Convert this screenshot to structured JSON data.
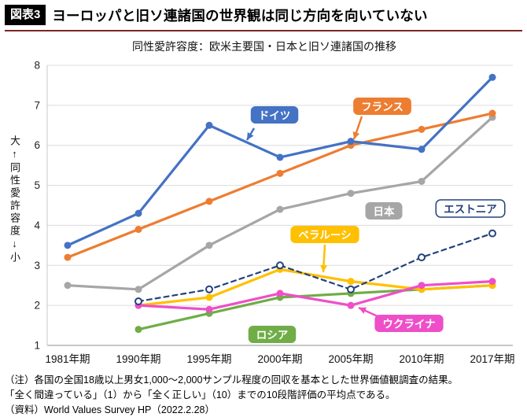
{
  "header": {
    "badge": "図表3",
    "title": "ヨーロッパと旧ソ連諸国の世界観は同じ方向を向いていない"
  },
  "chart_data": {
    "type": "line",
    "title": "同性愛許容度：欧米主要国・日本と旧ソ連諸国の推移",
    "y_axis_label": "大↑同性愛許容度↓小",
    "categories": [
      "1981年期",
      "1990年期",
      "1995年期",
      "2000年期",
      "2005年期",
      "2010年期",
      "2017年期"
    ],
    "ylim": [
      1,
      8
    ],
    "yticks": [
      1,
      2,
      3,
      4,
      5,
      6,
      7,
      8
    ],
    "grid": true,
    "legend_position": "on-chart-labels",
    "series": [
      {
        "name": "ドイツ",
        "color": "#4472c4",
        "style": "solid",
        "marker": "filled",
        "values": [
          3.5,
          4.3,
          6.5,
          5.7,
          6.1,
          5.9,
          7.7
        ]
      },
      {
        "name": "フランス",
        "color": "#ed7d31",
        "style": "solid",
        "marker": "filled",
        "values": [
          3.2,
          3.9,
          4.6,
          5.3,
          6.0,
          6.4,
          6.8
        ]
      },
      {
        "name": "日本",
        "color": "#a6a6a6",
        "style": "solid",
        "marker": "filled",
        "values": [
          2.5,
          2.4,
          3.5,
          4.4,
          4.8,
          5.1,
          6.7
        ]
      },
      {
        "name": "エストニア",
        "color": "#24427c",
        "style": "dashed",
        "marker": "open",
        "values": [
          null,
          2.1,
          2.4,
          3.0,
          2.4,
          3.2,
          3.8
        ]
      },
      {
        "name": "ベラルーシ",
        "color": "#ffc000",
        "style": "solid",
        "marker": "filled",
        "values": [
          null,
          2.0,
          2.2,
          2.9,
          2.6,
          2.4,
          2.5
        ]
      },
      {
        "name": "ロシア",
        "color": "#70ad47",
        "style": "solid",
        "marker": "filled",
        "values": [
          null,
          1.4,
          1.8,
          2.2,
          2.3,
          2.4,
          2.5
        ]
      },
      {
        "name": "ウクライナ",
        "color": "#ee4fc8",
        "style": "solid",
        "marker": "filled",
        "values": [
          null,
          2.0,
          1.9,
          2.3,
          2.0,
          2.5,
          2.6
        ]
      }
    ]
  },
  "notes": [
    "（注）各国の全国18歳以上男女1,000〜2,000サンプル程度の回収を基本とした世界価値観調査の結果。",
    "「全く間違っている」（1）から「全く正しい」（10）までの10段階評価の平均点である。",
    "（資料）World Values Survey HP（2022.2.28）"
  ]
}
